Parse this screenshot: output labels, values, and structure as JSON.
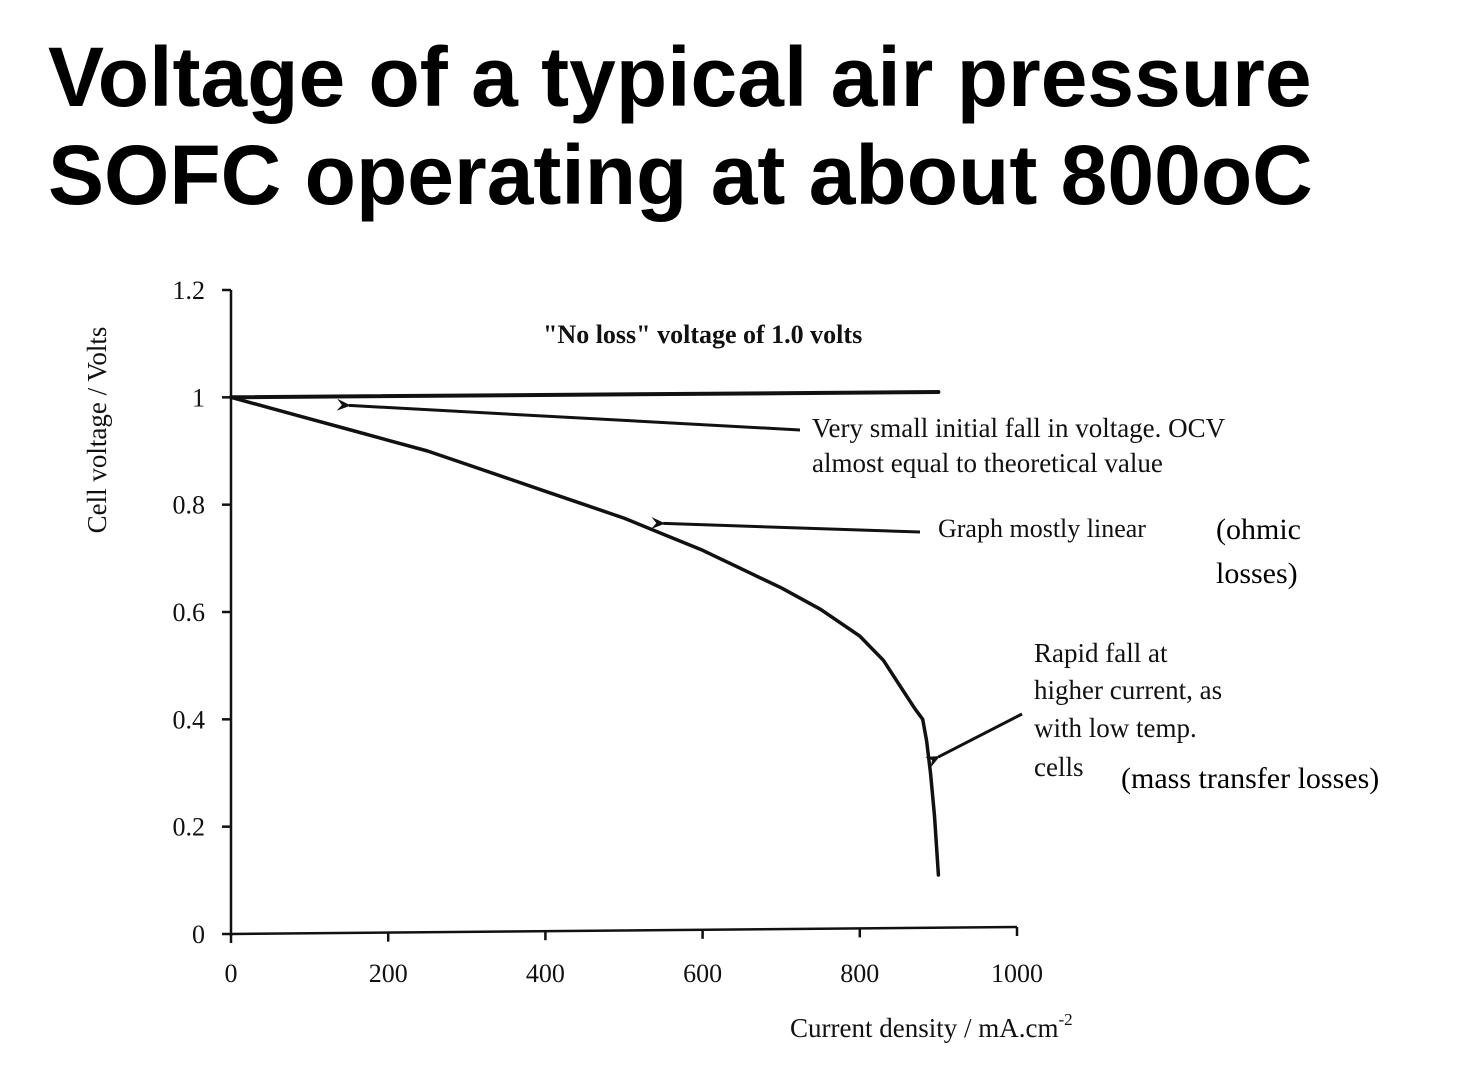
{
  "slide": {
    "title_line1": "Voltage of a typical air pressure",
    "title_line2": "SOFC operating at about 800oC"
  },
  "chart_data": {
    "type": "line",
    "title": "",
    "xlabel": "Current density / mA.cm",
    "xlabel_superscript": "-2",
    "ylabel": "Cell voltage / Volts",
    "xlim": [
      0,
      1000
    ],
    "ylim": [
      0,
      1.2
    ],
    "x_ticks": [
      0,
      200,
      400,
      600,
      800,
      1000
    ],
    "x_tick_labels": [
      "0",
      "200",
      "400",
      "600",
      "800",
      "1000"
    ],
    "y_ticks": [
      0,
      0.2,
      0.4,
      0.6,
      0.8,
      1,
      1.2
    ],
    "y_tick_labels": [
      "0",
      "0.2",
      "0.4",
      "0.6",
      "0.8",
      "1",
      "1.2"
    ],
    "grid": false,
    "series": [
      {
        "x": [
          0,
          900
        ],
        "y": [
          1.0,
          1.01
        ]
      },
      {
        "x": [
          0,
          50,
          100,
          150,
          200,
          250,
          300,
          350,
          400,
          450,
          500,
          550,
          600,
          650,
          700,
          750,
          800,
          830,
          850,
          870,
          880,
          885,
          890,
          895,
          900
        ],
        "y": [
          1.0,
          0.98,
          0.96,
          0.94,
          0.92,
          0.9,
          0.875,
          0.85,
          0.825,
          0.8,
          0.775,
          0.745,
          0.715,
          0.68,
          0.645,
          0.605,
          0.555,
          0.51,
          0.465,
          0.42,
          0.4,
          0.36,
          0.3,
          0.22,
          0.11
        ]
      }
    ],
    "annotations": [
      {
        "text": "\"No loss\" voltage of 1.0 volts"
      },
      {
        "text_line1": "Very small initial fall in voltage. OCV",
        "text_line2": "almost equal to theoretical value",
        "points_to": [
          150,
          0.985
        ]
      },
      {
        "text": "Graph mostly linear",
        "extra_line1": "(ohmic",
        "extra_line2": "losses)",
        "points_to": [
          550,
          0.765
        ]
      },
      {
        "text_line1": "Rapid fall at",
        "text_line2": "higher current, as",
        "text_line3": "with low temp.",
        "text_line4": "cells",
        "extra": "(mass transfer losses)",
        "points_to": [
          900,
          0.33
        ]
      }
    ]
  }
}
